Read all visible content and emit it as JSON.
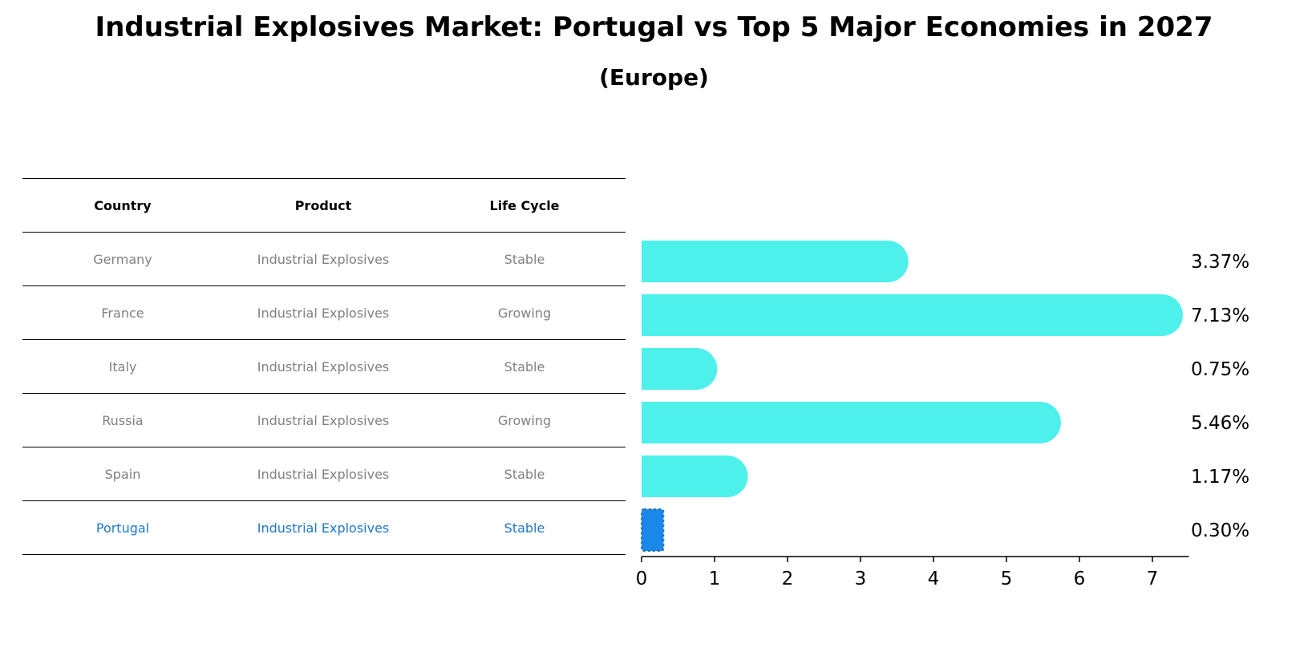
{
  "title": "Industrial Explosives Market: Portugal vs Top 5 Major Economies in 2027",
  "subtitle": "(Europe)",
  "table": {
    "headers": [
      "Country",
      "Product",
      "Life Cycle"
    ],
    "rows": [
      {
        "country": "Germany",
        "product": "Industrial Explosives",
        "life_cycle": "Stable"
      },
      {
        "country": "France",
        "product": "Industrial Explosives",
        "life_cycle": "Growing"
      },
      {
        "country": "Italy",
        "product": "Industrial Explosives",
        "life_cycle": "Stable"
      },
      {
        "country": "Russia",
        "product": "Industrial Explosives",
        "life_cycle": "Growing"
      },
      {
        "country": "Spain",
        "product": "Industrial Explosives",
        "life_cycle": "Stable"
      },
      {
        "country": "Portugal",
        "product": "Industrial Explosives",
        "life_cycle": "Stable"
      }
    ]
  },
  "colors": {
    "bar": "#4ef0ec",
    "highlight_bar": "#1a88e8",
    "highlight_text": "#1f77c8",
    "muted_text": "#808080"
  },
  "chart_data": {
    "type": "bar",
    "orientation": "horizontal",
    "categories": [
      "Germany",
      "France",
      "Italy",
      "Russia",
      "Spain",
      "Portugal"
    ],
    "values": [
      3.37,
      7.13,
      0.75,
      5.46,
      1.17,
      0.3
    ],
    "value_labels": [
      "3.37%",
      "7.13%",
      "0.75%",
      "5.46%",
      "1.17%",
      "0.30%"
    ],
    "highlight": "Portugal",
    "xlim": [
      0,
      7.5
    ],
    "xticks": [
      0,
      1,
      2,
      3,
      4,
      5,
      6,
      7
    ],
    "grid": false
  }
}
